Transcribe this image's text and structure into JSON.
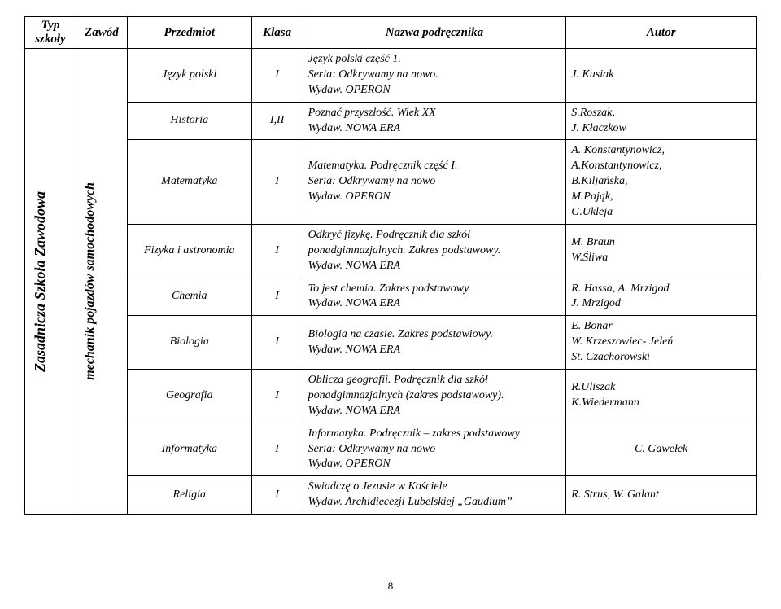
{
  "headers": {
    "c1": "Typ szkoły",
    "c2": "Zawód",
    "c3": "Przedmiot",
    "c4": "Klasa",
    "c5": "Nazwa podręcznika",
    "c6": "Autor"
  },
  "school_type": "Zasadnicza Szkoła Zawodowa",
  "profession": "mechanik pojazdów samochodowych",
  "rows": [
    {
      "subject": "Język polski",
      "class": "I",
      "textbook": "Język polski część 1.\nSeria: Odkrywamy na nowo.\nWydaw. OPERON",
      "author": "J. Kusiak"
    },
    {
      "subject": "Historia",
      "class": "I,II",
      "textbook": "Poznać przyszłość. Wiek XX\nWydaw. NOWA ERA",
      "author": "S.Roszak,\nJ. Kłaczkow"
    },
    {
      "subject": "Matematyka",
      "class": "I",
      "textbook": "Matematyka. Podręcznik część I.\nSeria: Odkrywamy na nowo\nWydaw. OPERON",
      "author": "A. Konstantynowicz,\nA.Konstantynowicz,\nB.Kiljańska,\nM.Pająk,\nG.Ukleja"
    },
    {
      "subject": "Fizyka i astronomia",
      "class": "I",
      "textbook": "Odkryć fizykę. Podręcznik dla szkół ponadgimnazjalnych. Zakres podstawowy.\nWydaw. NOWA ERA",
      "author": "M. Braun\nW.Śliwa"
    },
    {
      "subject": "Chemia",
      "class": "I",
      "textbook": "To jest chemia. Zakres podstawowy\nWydaw. NOWA ERA",
      "author": "R. Hassa, A. Mrzigod\nJ. Mrzigod"
    },
    {
      "subject": "Biologia",
      "class": "I",
      "textbook": "Biologia na czasie. Zakres podstawiowy.\nWydaw. NOWA ERA",
      "author": "E. Bonar\nW. Krzeszowiec- Jeleń\nSt. Czachorowski"
    },
    {
      "subject": "Geografia",
      "class": "I",
      "textbook": "Oblicza geografii. Podręcznik dla szkół ponadgimnazjalnych (zakres podstawowy).\nWydaw. NOWA ERA",
      "author": "R.Uliszak\nK.Wiedermann"
    },
    {
      "subject": "Informatyka",
      "class": "I",
      "textbook": "Informatyka. Podręcznik – zakres podstawowy\nSeria: Odkrywamy na nowo\nWydaw. OPERON",
      "author": "C.    Gawełek"
    },
    {
      "subject": "Religia",
      "class": "I",
      "textbook": "Świadczę o Jezusie w Kościele\nWydaw. Archidiecezji Lubelskiej „Gaudium”",
      "author": "R. Strus, W. Galant"
    }
  ],
  "page_number": "8"
}
